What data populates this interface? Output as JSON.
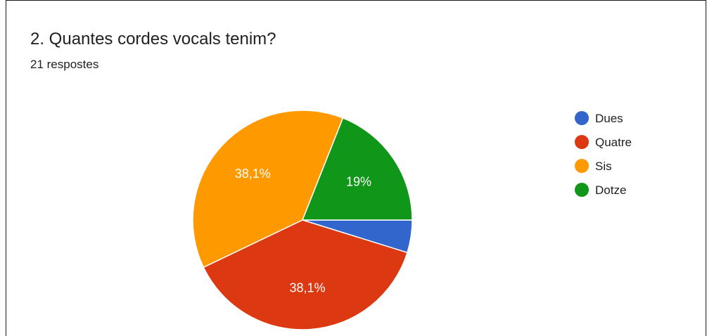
{
  "question": {
    "title": "2. Quantes cordes vocals tenim?",
    "responses": "21 respostes"
  },
  "chart_data": {
    "type": "pie",
    "title": "2. Quantes cordes vocals tenim?",
    "total_responses": 21,
    "legend_position": "right",
    "slices": [
      {
        "name": "Dues",
        "percent": 4.8,
        "color": "#3366cc",
        "label": ""
      },
      {
        "name": "Quatre",
        "percent": 38.1,
        "color": "#dc3912",
        "label": "38,1%"
      },
      {
        "name": "Sis",
        "percent": 38.1,
        "color": "#ff9900",
        "label": "38,1%"
      },
      {
        "name": "Dotze",
        "percent": 19.0,
        "color": "#109618",
        "label": "19%"
      }
    ]
  }
}
